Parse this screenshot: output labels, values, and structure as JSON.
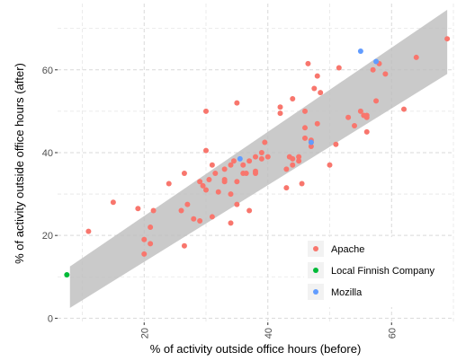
{
  "chart_data": {
    "type": "scatter",
    "xlabel": "% of activity outside office hours (before)",
    "ylabel": "% of activity outside office hours (after)",
    "xlim": [
      6,
      70
    ],
    "ylim": [
      -1,
      76
    ],
    "xticks": [
      "20",
      "40",
      "60"
    ],
    "yticks": [
      "0",
      "20",
      "40",
      "60"
    ],
    "grid": true,
    "legend_position": "bottom-right",
    "band": {
      "description": "regression band",
      "color": "#bdbdbd",
      "lower_line": [
        [
          8,
          2.5
        ],
        [
          69,
          59
        ]
      ],
      "upper_line": [
        [
          8,
          12.5
        ],
        [
          69,
          74.5
        ]
      ]
    },
    "series": [
      {
        "name": "Apache",
        "color": "#F8766D",
        "points": [
          [
            11,
            21
          ],
          [
            15,
            28
          ],
          [
            19,
            26.5
          ],
          [
            20,
            19
          ],
          [
            20,
            15.5
          ],
          [
            21,
            22
          ],
          [
            21,
            18
          ],
          [
            21.5,
            26
          ],
          [
            24,
            32.5
          ],
          [
            26,
            26
          ],
          [
            26.5,
            17.5
          ],
          [
            26.5,
            35
          ],
          [
            27,
            27.5
          ],
          [
            28,
            24
          ],
          [
            29,
            33
          ],
          [
            29,
            23.5
          ],
          [
            29.5,
            32
          ],
          [
            30,
            50
          ],
          [
            30,
            40.5
          ],
          [
            30,
            31
          ],
          [
            30.5,
            33.5
          ],
          [
            31,
            37
          ],
          [
            31,
            24.5
          ],
          [
            31.5,
            35
          ],
          [
            32,
            30.5
          ],
          [
            33,
            33
          ],
          [
            33,
            36
          ],
          [
            33,
            33.5
          ],
          [
            34,
            23
          ],
          [
            34,
            30
          ],
          [
            34,
            37
          ],
          [
            34.5,
            38
          ],
          [
            35,
            33
          ],
          [
            35,
            52
          ],
          [
            35,
            27.5
          ],
          [
            36,
            37
          ],
          [
            36,
            35
          ],
          [
            36.5,
            35
          ],
          [
            37,
            38
          ],
          [
            37,
            26
          ],
          [
            38,
            35.5
          ],
          [
            38,
            35
          ],
          [
            38,
            39
          ],
          [
            39,
            40
          ],
          [
            39,
            38.5
          ],
          [
            39.5,
            42.5
          ],
          [
            40,
            39
          ],
          [
            42,
            51
          ],
          [
            42,
            49.5
          ],
          [
            43,
            31.5
          ],
          [
            43,
            36
          ],
          [
            43.5,
            39
          ],
          [
            44,
            38.5
          ],
          [
            44,
            53
          ],
          [
            44,
            37
          ],
          [
            45,
            39
          ],
          [
            45,
            38
          ],
          [
            45.5,
            32.5
          ],
          [
            46,
            43.5
          ],
          [
            46,
            46
          ],
          [
            46,
            50
          ],
          [
            46.5,
            61.5
          ],
          [
            47,
            42.5
          ],
          [
            47,
            41.5
          ],
          [
            47,
            43
          ],
          [
            47.5,
            55.5
          ],
          [
            48,
            58.5
          ],
          [
            48,
            47
          ],
          [
            48.5,
            54.5
          ],
          [
            50,
            37
          ],
          [
            51,
            42
          ],
          [
            51.5,
            60.5
          ],
          [
            53,
            48.5
          ],
          [
            54,
            46.5
          ],
          [
            55,
            50
          ],
          [
            55.5,
            49
          ],
          [
            56,
            48.5
          ],
          [
            56,
            45
          ],
          [
            56,
            49
          ],
          [
            57,
            60
          ],
          [
            57.5,
            52.5
          ],
          [
            58,
            61.5
          ],
          [
            59,
            59
          ],
          [
            62,
            50.5
          ],
          [
            64,
            63
          ],
          [
            69,
            67.5
          ]
        ]
      },
      {
        "name": "Local Finnish Company",
        "color": "#00BA38",
        "points": [
          [
            7.5,
            10.5
          ]
        ]
      },
      {
        "name": "Mozilla",
        "color": "#619CFF",
        "points": [
          [
            35.5,
            38.5
          ],
          [
            47,
            42.5
          ],
          [
            55,
            64.5
          ],
          [
            57.5,
            62
          ]
        ]
      }
    ]
  }
}
